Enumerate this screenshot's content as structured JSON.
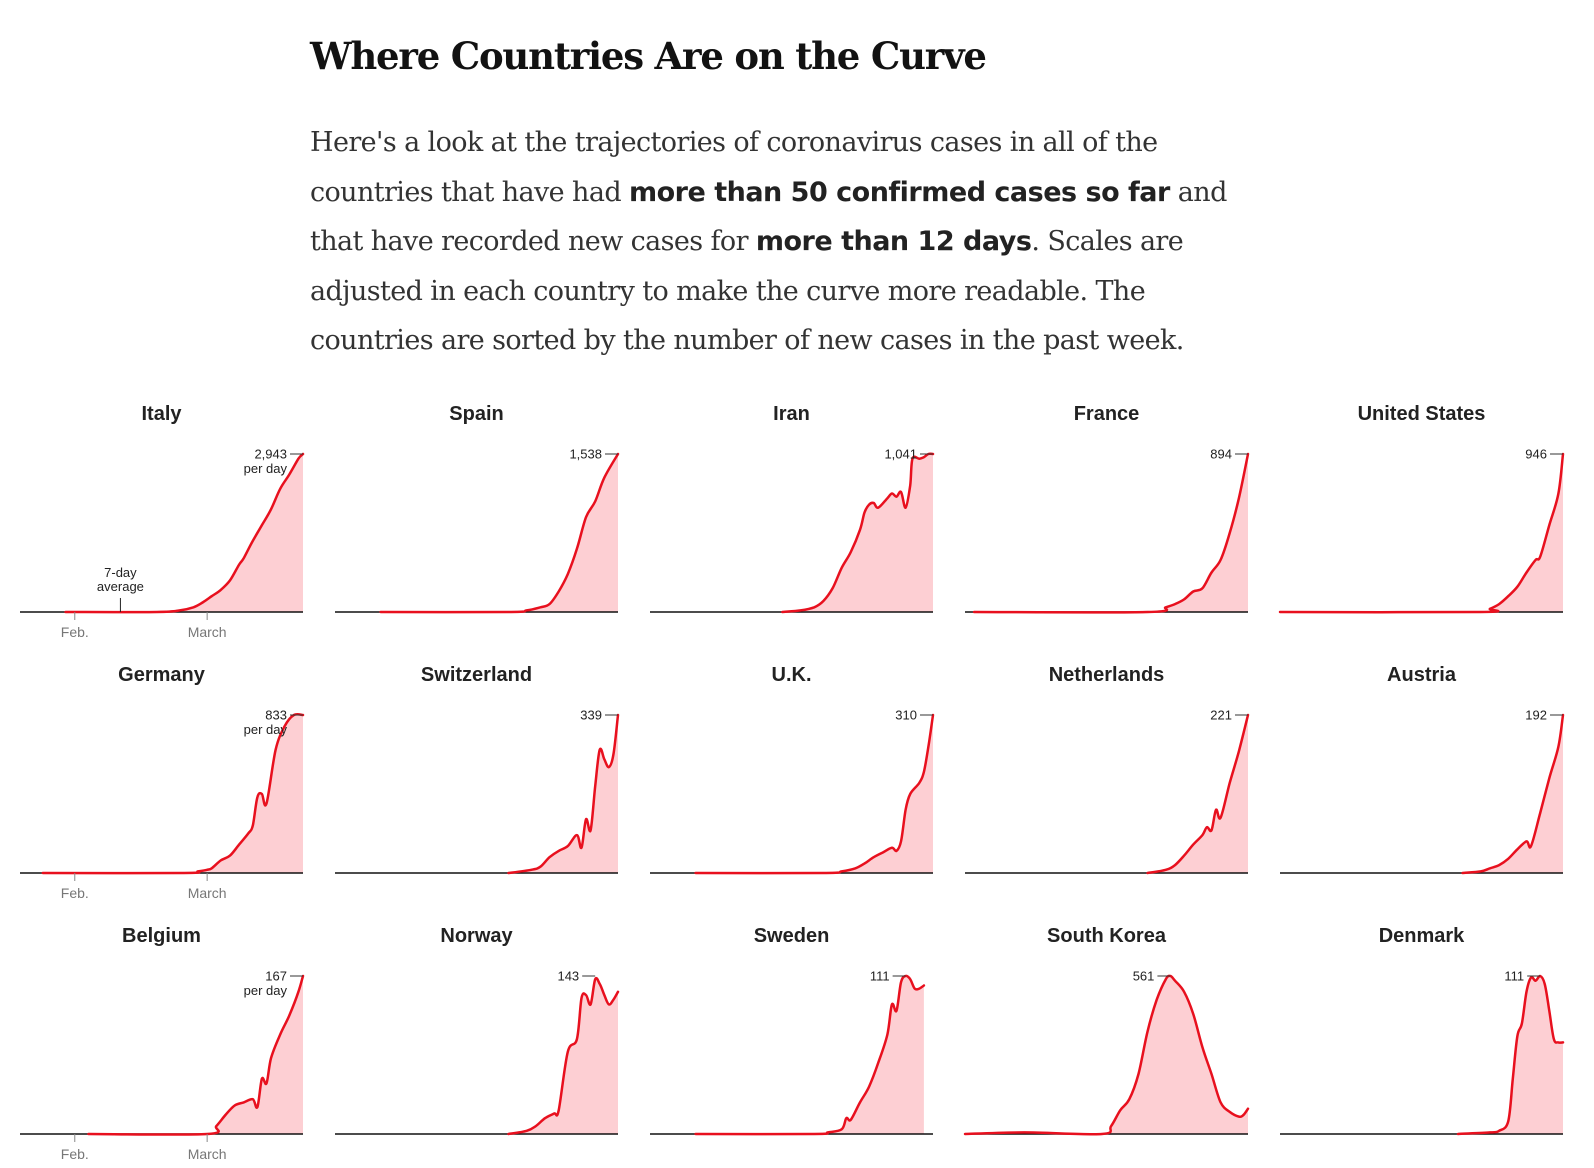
{
  "header": {
    "title": "Where Countries Are on the Curve",
    "intro": [
      {
        "text": "Here's a look at the trajectories of coronavirus cases in all of the countries that have had "
      },
      {
        "text": "more than 50 confirmed cases so far",
        "bold": true
      },
      {
        "text": " and that have recorded new cases for "
      },
      {
        "text": "more than 12 days",
        "bold": true
      },
      {
        "text": ". Scales are adjusted in each country to make the curve more readable. The countries are sorted by the number of new cases in the past week."
      }
    ]
  },
  "colors": {
    "line": "#e8101e",
    "fill": "#fdcfd3",
    "axis": "#111111",
    "tick": "#777777"
  },
  "chart_data": {
    "type": "area",
    "x_range_days": [
      0,
      62
    ],
    "x_ticks": [
      {
        "label": "Feb.",
        "day": 12
      },
      {
        "label": "March",
        "day": 41
      }
    ],
    "annotation": {
      "text": [
        "7-day",
        "average"
      ],
      "day": 22
    },
    "peak_unit": "per day",
    "series": [
      {
        "name": "Italy",
        "peak_label": "2,943",
        "show_unit": true,
        "show_ticks": true,
        "show_annotation": true,
        "start": 10,
        "points": [
          [
            10,
            0
          ],
          [
            30,
            0
          ],
          [
            35,
            0.01
          ],
          [
            38,
            0.03
          ],
          [
            40,
            0.06
          ],
          [
            42,
            0.1
          ],
          [
            44,
            0.14
          ],
          [
            46,
            0.2
          ],
          [
            48,
            0.3
          ],
          [
            49,
            0.34
          ],
          [
            51,
            0.45
          ],
          [
            53,
            0.55
          ],
          [
            55,
            0.65
          ],
          [
            57,
            0.78
          ],
          [
            59,
            0.87
          ],
          [
            61,
            0.97
          ],
          [
            62,
            1
          ]
        ]
      },
      {
        "name": "Spain",
        "peak_label": "1,538",
        "start": 10,
        "points": [
          [
            10,
            0
          ],
          [
            38,
            0
          ],
          [
            42,
            0.01
          ],
          [
            45,
            0.03
          ],
          [
            47,
            0.05
          ],
          [
            49,
            0.13
          ],
          [
            51,
            0.24
          ],
          [
            53,
            0.4
          ],
          [
            55,
            0.6
          ],
          [
            57,
            0.7
          ],
          [
            59,
            0.85
          ],
          [
            62,
            1
          ]
        ]
      },
      {
        "name": "Iran",
        "peak_label": "1,041",
        "start": 29,
        "points": [
          [
            29,
            0
          ],
          [
            33,
            0.01
          ],
          [
            36,
            0.03
          ],
          [
            38,
            0.07
          ],
          [
            40,
            0.15
          ],
          [
            42,
            0.28
          ],
          [
            44,
            0.38
          ],
          [
            46,
            0.52
          ],
          [
            47,
            0.63
          ],
          [
            48,
            0.68
          ],
          [
            49,
            0.69
          ],
          [
            50,
            0.66
          ],
          [
            52,
            0.72
          ],
          [
            53,
            0.75
          ],
          [
            54,
            0.73
          ],
          [
            55,
            0.76
          ],
          [
            56,
            0.66
          ],
          [
            57,
            0.8
          ],
          [
            57.5,
            0.97
          ],
          [
            59,
            0.97
          ],
          [
            60,
            0.98
          ],
          [
            61,
            1
          ],
          [
            62,
            1
          ]
        ]
      },
      {
        "name": "France",
        "peak_label": "894",
        "start": 2,
        "points": [
          [
            2,
            0
          ],
          [
            40,
            0
          ],
          [
            44,
            0.03
          ],
          [
            46,
            0.05
          ],
          [
            48,
            0.08
          ],
          [
            50,
            0.13
          ],
          [
            52,
            0.15
          ],
          [
            54,
            0.25
          ],
          [
            56,
            0.33
          ],
          [
            58,
            0.5
          ],
          [
            60,
            0.72
          ],
          [
            62,
            1
          ]
        ]
      },
      {
        "name": "United States",
        "peak_label": "946",
        "start": 0,
        "points": [
          [
            0,
            0
          ],
          [
            44,
            0
          ],
          [
            46,
            0.02
          ],
          [
            48,
            0.05
          ],
          [
            50,
            0.1
          ],
          [
            52,
            0.16
          ],
          [
            54,
            0.25
          ],
          [
            56,
            0.33
          ],
          [
            57,
            0.35
          ],
          [
            59,
            0.55
          ],
          [
            61,
            0.75
          ],
          [
            62,
            1
          ]
        ]
      },
      {
        "name": "Germany",
        "peak_label": "833",
        "show_unit": true,
        "show_ticks": true,
        "start": 5,
        "points": [
          [
            5,
            0
          ],
          [
            36,
            0
          ],
          [
            39,
            0.01
          ],
          [
            41,
            0.02
          ],
          [
            42,
            0.03
          ],
          [
            44,
            0.08
          ],
          [
            46,
            0.11
          ],
          [
            48,
            0.18
          ],
          [
            50,
            0.25
          ],
          [
            51,
            0.3
          ],
          [
            52,
            0.48
          ],
          [
            53,
            0.5
          ],
          [
            54,
            0.44
          ],
          [
            56,
            0.78
          ],
          [
            58,
            0.93
          ],
          [
            60,
            1
          ],
          [
            62,
            1
          ]
        ]
      },
      {
        "name": "Switzerland",
        "peak_label": "339",
        "start": 38,
        "points": [
          [
            38,
            0
          ],
          [
            43,
            0.02
          ],
          [
            45,
            0.04
          ],
          [
            47,
            0.1
          ],
          [
            49,
            0.14
          ],
          [
            51,
            0.17
          ],
          [
            53,
            0.24
          ],
          [
            54,
            0.16
          ],
          [
            55,
            0.34
          ],
          [
            56,
            0.27
          ],
          [
            57,
            0.55
          ],
          [
            58,
            0.78
          ],
          [
            59,
            0.72
          ],
          [
            60,
            0.67
          ],
          [
            61,
            0.75
          ],
          [
            62,
            1
          ]
        ]
      },
      {
        "name": "U.K.",
        "peak_label": "310",
        "start": 10,
        "points": [
          [
            10,
            0
          ],
          [
            38,
            0
          ],
          [
            42,
            0.01
          ],
          [
            45,
            0.03
          ],
          [
            47,
            0.06
          ],
          [
            49,
            0.1
          ],
          [
            51,
            0.13
          ],
          [
            53,
            0.16
          ],
          [
            54,
            0.14
          ],
          [
            55,
            0.2
          ],
          [
            56,
            0.4
          ],
          [
            57,
            0.5
          ],
          [
            59,
            0.57
          ],
          [
            60,
            0.64
          ],
          [
            61,
            0.8
          ],
          [
            62,
            1
          ]
        ]
      },
      {
        "name": "Netherlands",
        "peak_label": "221",
        "start": 40,
        "points": [
          [
            40,
            0
          ],
          [
            44,
            0.02
          ],
          [
            46,
            0.05
          ],
          [
            48,
            0.11
          ],
          [
            50,
            0.18
          ],
          [
            52,
            0.24
          ],
          [
            53,
            0.29
          ],
          [
            54,
            0.27
          ],
          [
            55,
            0.4
          ],
          [
            56,
            0.35
          ],
          [
            58,
            0.57
          ],
          [
            60,
            0.77
          ],
          [
            62,
            1
          ]
        ]
      },
      {
        "name": "Austria",
        "peak_label": "192",
        "start": 40,
        "points": [
          [
            40,
            0
          ],
          [
            44,
            0.01
          ],
          [
            46,
            0.03
          ],
          [
            48,
            0.05
          ],
          [
            50,
            0.09
          ],
          [
            52,
            0.15
          ],
          [
            54,
            0.2
          ],
          [
            55,
            0.17
          ],
          [
            57,
            0.38
          ],
          [
            59,
            0.6
          ],
          [
            61,
            0.8
          ],
          [
            62,
            1
          ]
        ]
      },
      {
        "name": "Belgium",
        "peak_label": "167",
        "show_unit": true,
        "show_ticks": true,
        "start": 15,
        "points": [
          [
            15,
            0
          ],
          [
            41,
            0
          ],
          [
            43,
            0.05
          ],
          [
            45,
            0.12
          ],
          [
            47,
            0.18
          ],
          [
            49,
            0.2
          ],
          [
            51,
            0.22
          ],
          [
            52,
            0.17
          ],
          [
            53,
            0.35
          ],
          [
            54,
            0.32
          ],
          [
            55,
            0.48
          ],
          [
            57,
            0.63
          ],
          [
            59,
            0.75
          ],
          [
            61,
            0.9
          ],
          [
            62,
            1
          ]
        ]
      },
      {
        "name": "Norway",
        "peak_label": "143",
        "start": 38,
        "points": [
          [
            38,
            0
          ],
          [
            42,
            0.02
          ],
          [
            44,
            0.05
          ],
          [
            46,
            0.1
          ],
          [
            48,
            0.13
          ],
          [
            49,
            0.15
          ],
          [
            51,
            0.52
          ],
          [
            53,
            0.6
          ],
          [
            54,
            0.86
          ],
          [
            55,
            0.88
          ],
          [
            56,
            0.82
          ],
          [
            57,
            0.98
          ],
          [
            58,
            0.95
          ],
          [
            59,
            0.88
          ],
          [
            60,
            0.82
          ],
          [
            61,
            0.85
          ],
          [
            62,
            0.9
          ]
        ]
      },
      {
        "name": "Sweden",
        "peak_label": "111",
        "start": 10,
        "points": [
          [
            10,
            0
          ],
          [
            36,
            0
          ],
          [
            39,
            0.01
          ],
          [
            42,
            0.03
          ],
          [
            43,
            0.1
          ],
          [
            44,
            0.09
          ],
          [
            46,
            0.2
          ],
          [
            48,
            0.3
          ],
          [
            50,
            0.45
          ],
          [
            52,
            0.63
          ],
          [
            53,
            0.82
          ],
          [
            54,
            0.78
          ],
          [
            55,
            0.96
          ],
          [
            56,
            1
          ],
          [
            57,
            0.98
          ],
          [
            58,
            0.92
          ],
          [
            59,
            0.92
          ],
          [
            60,
            0.94
          ]
        ]
      },
      {
        "name": "South Korea",
        "peak_label": "561",
        "start": 0,
        "points": [
          [
            0,
            0
          ],
          [
            13,
            0.01
          ],
          [
            30,
            0
          ],
          [
            32,
            0.05
          ],
          [
            34,
            0.15
          ],
          [
            36,
            0.22
          ],
          [
            38,
            0.38
          ],
          [
            40,
            0.65
          ],
          [
            42,
            0.85
          ],
          [
            44,
            0.98
          ],
          [
            45,
            1
          ],
          [
            46,
            0.97
          ],
          [
            48,
            0.9
          ],
          [
            50,
            0.76
          ],
          [
            52,
            0.55
          ],
          [
            54,
            0.38
          ],
          [
            56,
            0.2
          ],
          [
            58,
            0.14
          ],
          [
            60,
            0.11
          ],
          [
            61,
            0.12
          ],
          [
            62,
            0.16
          ]
        ]
      },
      {
        "name": "Denmark",
        "peak_label": "111",
        "start": 39,
        "points": [
          [
            39,
            0
          ],
          [
            46,
            0.01
          ],
          [
            48,
            0.02
          ],
          [
            50,
            0.08
          ],
          [
            51,
            0.35
          ],
          [
            52,
            0.62
          ],
          [
            53,
            0.7
          ],
          [
            54,
            0.9
          ],
          [
            55,
            0.99
          ],
          [
            56,
            0.97
          ],
          [
            57,
            1
          ],
          [
            58,
            0.95
          ],
          [
            59,
            0.78
          ],
          [
            60,
            0.6
          ],
          [
            61,
            0.58
          ],
          [
            62,
            0.58
          ]
        ]
      }
    ]
  }
}
